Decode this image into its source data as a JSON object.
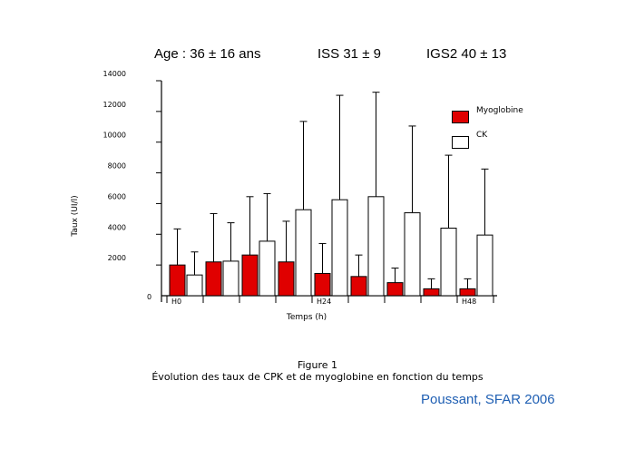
{
  "header": {
    "age": "Age : 36 ± 16 ans",
    "iss": "ISS 31 ± 9",
    "igs2": "IGS2 40 ± 13"
  },
  "caption": {
    "figure": "Figure 1",
    "text": "Évolution des taux de CPK et de myoglobine en fonction du temps"
  },
  "credit": "Poussant, SFAR 2006",
  "chart_data": {
    "type": "bar",
    "ylabel": "Taux (UI/l)",
    "xlabel": "Temps (h)",
    "ylim": [
      0,
      14000
    ],
    "y_ticks": [
      "0",
      "2000",
      "4000",
      "6000",
      "8000",
      "10000",
      "12000",
      "14000"
    ],
    "x_tick_labels": [
      {
        "label": "H0",
        "group": 0
      },
      {
        "label": "H24",
        "group": 4
      },
      {
        "label": "H48",
        "group": 8
      }
    ],
    "legend_position": "top-right",
    "groups": 9,
    "series": [
      {
        "name": "Myoglobine",
        "color": "#e00000",
        "values": [
          2000,
          2200,
          2650,
          2200,
          1450,
          1250,
          850,
          450,
          450
        ],
        "error_upper": [
          4350,
          5350,
          6450,
          4850,
          3400,
          2650,
          1800,
          1100,
          1100
        ]
      },
      {
        "name": "CK",
        "color": "#ffffff",
        "values": [
          1350,
          2250,
          3550,
          5600,
          6250,
          6450,
          5400,
          4400,
          3950
        ],
        "error_upper": [
          2850,
          4750,
          6650,
          11350,
          13050,
          13250,
          11050,
          9150,
          8250
        ]
      }
    ]
  }
}
